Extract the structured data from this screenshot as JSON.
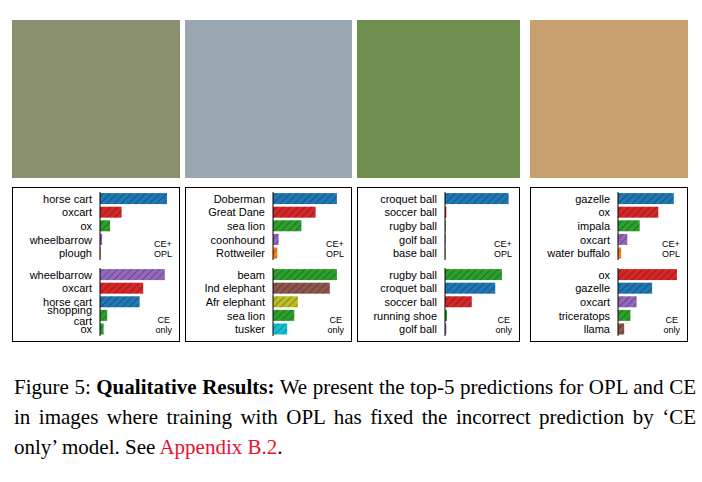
{
  "chart_data": [
    {
      "type": "bar",
      "orientation": "horizontal",
      "title": "CE+ OPL",
      "tick_labels": "y",
      "xlim": [
        0,
        1
      ],
      "categories": [
        "horse cart",
        "oxcart",
        "ox",
        "wheelbarrow",
        "plough"
      ],
      "values": [
        0.93,
        0.3,
        0.14,
        0.03,
        0.01
      ],
      "colors": [
        "#1f77b4",
        "#d62728",
        "#2ca02c",
        "#9467bd",
        "#ff7f0e"
      ]
    },
    {
      "type": "bar",
      "orientation": "horizontal",
      "title": "CE only",
      "tick_labels": "y",
      "xlim": [
        0,
        1
      ],
      "categories": [
        "wheelbarrow",
        "oxcart",
        "horse cart",
        "shopping cart",
        "ox"
      ],
      "values": [
        0.9,
        0.6,
        0.55,
        0.1,
        0.05
      ],
      "colors": [
        "#9467bd",
        "#d62728",
        "#1f77b4",
        "#2ca02c",
        "#2ca02c"
      ]
    },
    {
      "type": "bar",
      "orientation": "horizontal",
      "title": "CE+ OPL",
      "tick_labels": "y",
      "xlim": [
        0,
        1
      ],
      "categories": [
        "Doberman",
        "Great Dane",
        "sea lion",
        "coonhound",
        "Rottweiler"
      ],
      "values": [
        0.9,
        0.6,
        0.4,
        0.08,
        0.06
      ],
      "colors": [
        "#1f77b4",
        "#d62728",
        "#2ca02c",
        "#9467bd",
        "#ff7f0e"
      ]
    },
    {
      "type": "bar",
      "orientation": "horizontal",
      "title": "CE only",
      "tick_labels": "y",
      "xlim": [
        0,
        1
      ],
      "categories": [
        "beam",
        "Ind elephant",
        "Afr elephant",
        "sea lion",
        "tusker"
      ],
      "values": [
        0.9,
        0.8,
        0.35,
        0.3,
        0.2
      ],
      "colors": [
        "#2ca02c",
        "#8c564b",
        "#bcbd22",
        "#2ca02c",
        "#17becf"
      ]
    },
    {
      "type": "bar",
      "orientation": "horizontal",
      "title": "CE+ OPL",
      "tick_labels": "y",
      "xlim": [
        0,
        1
      ],
      "categories": [
        "croquet ball",
        "soccer ball",
        "rugby ball",
        "golf ball",
        "base ball"
      ],
      "values": [
        0.95,
        0.02,
        0.01,
        0.01,
        0.01
      ],
      "colors": [
        "#1f77b4",
        "#d62728",
        "#2ca02c",
        "#9467bd",
        "#ff7f0e"
      ]
    },
    {
      "type": "bar",
      "orientation": "horizontal",
      "title": "CE only",
      "tick_labels": "y",
      "xlim": [
        0,
        1
      ],
      "categories": [
        "rugby ball",
        "croquet ball",
        "soccer ball",
        "running shoe",
        "golf ball"
      ],
      "values": [
        0.85,
        0.75,
        0.4,
        0.03,
        0.02
      ],
      "colors": [
        "#2ca02c",
        "#1f77b4",
        "#d62728",
        "#2ca02c",
        "#9467bd"
      ]
    },
    {
      "type": "bar",
      "orientation": "horizontal",
      "title": "CE+ OPL",
      "tick_labels": "y",
      "xlim": [
        0,
        1
      ],
      "categories": [
        "gazelle",
        "ox",
        "impala",
        "oxcart",
        "water buffalo"
      ],
      "values": [
        0.9,
        0.65,
        0.35,
        0.15,
        0.05
      ],
      "colors": [
        "#1f77b4",
        "#d62728",
        "#2ca02c",
        "#9467bd",
        "#ff7f0e"
      ]
    },
    {
      "type": "bar",
      "orientation": "horizontal",
      "title": "CE only",
      "tick_labels": "y",
      "xlim": [
        0,
        1
      ],
      "categories": [
        "ox",
        "gazelle",
        "oxcart",
        "triceratops",
        "llama"
      ],
      "values": [
        0.95,
        0.55,
        0.3,
        0.2,
        0.1
      ],
      "colors": [
        "#d62728",
        "#1f77b4",
        "#9467bd",
        "#2ca02c",
        "#8c564b"
      ]
    }
  ],
  "caption": {
    "label": "Figure 5:",
    "title": "Qualitative Results:",
    "text": "We present the top-5 predictions for OPL and CE in images where training with OPL has fixed the incorrect prediction by ‘CE only’ model. See",
    "link": "Appendix B.2",
    "end": "."
  }
}
